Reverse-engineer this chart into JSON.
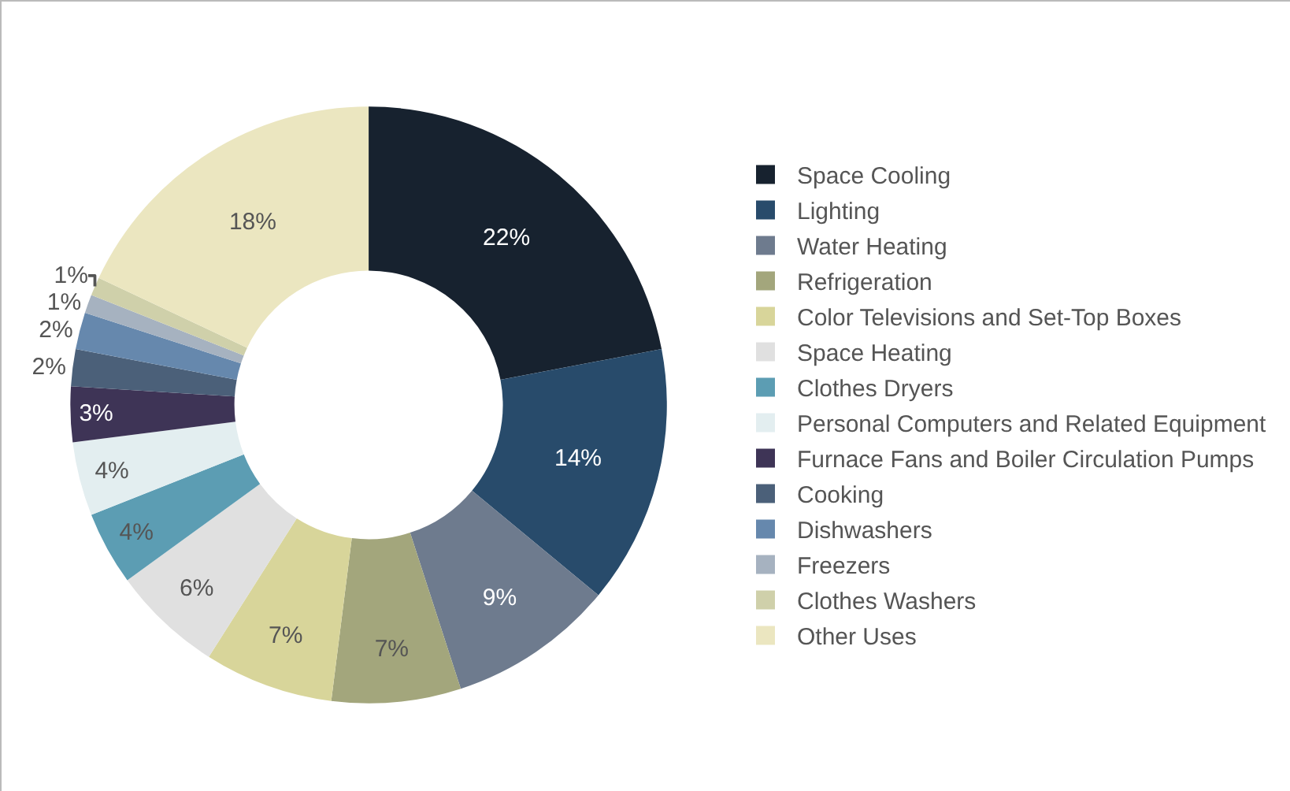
{
  "chart_data": {
    "type": "donut",
    "categories": [
      "Space Cooling",
      "Lighting",
      "Water Heating",
      "Refrigeration",
      "Color Televisions and Set-Top Boxes",
      "Space Heating",
      "Clothes Dryers",
      "Personal Computers and Related Equipment",
      "Furnace Fans and Boiler Circulation Pumps",
      "Cooking",
      "Dishwashers",
      "Freezers",
      "Clothes Washers",
      "Other Uses"
    ],
    "values": [
      22,
      14,
      9,
      7,
      7,
      6,
      4,
      4,
      3,
      2,
      2,
      1,
      1,
      18
    ],
    "value_labels": [
      "22%",
      "14%",
      "9%",
      "7%",
      "7%",
      "6%",
      "4%",
      "4%",
      "3%",
      "2%",
      "2%",
      "1%",
      "1%",
      "18%"
    ],
    "colors": [
      "#17222f",
      "#284b6b",
      "#6e7b8e",
      "#a3a67c",
      "#d8d59a",
      "#e0e0e0",
      "#5c9db3",
      "#e3eef0",
      "#3e3456",
      "#4b6079",
      "#6688ad",
      "#a6b2c0",
      "#cfd0aa",
      "#ebe6c0"
    ],
    "legend": "right"
  }
}
